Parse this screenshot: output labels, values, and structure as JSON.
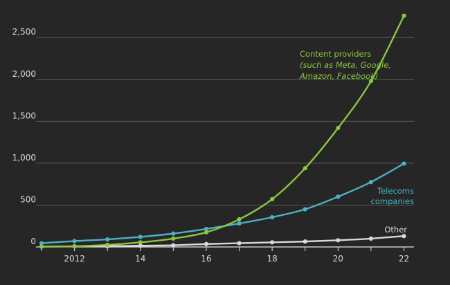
{
  "chart_data": {
    "type": "line",
    "title": "",
    "xlabel": "",
    "ylabel": "",
    "x": [
      2011,
      2012,
      2013,
      2014,
      2015,
      2016,
      2017,
      2018,
      2019,
      2020,
      2021,
      2022
    ],
    "x_tick_values": [
      2012,
      2014,
      2016,
      2018,
      2020,
      2022
    ],
    "x_tick_labels": [
      "2012",
      "14",
      "16",
      "18",
      "20",
      "22"
    ],
    "xlim": [
      2011,
      2022.2
    ],
    "y_ticks": [
      0,
      500,
      1000,
      1500,
      2000,
      2500
    ],
    "y_tick_labels": [
      "0",
      "500",
      "1,000",
      "1,500",
      "2,000",
      "2,500"
    ],
    "ylim": [
      0,
      2700
    ],
    "grid": "horizontal",
    "series": [
      {
        "key": "content",
        "label_lines": [
          "Content providers",
          "(such as Meta, Google,",
          "Amazon, Facebook)"
        ],
        "color": "#8cc63f",
        "values": [
          3,
          8,
          25,
          55,
          100,
          175,
          330,
          570,
          940,
          1420,
          1980,
          2760
        ]
      },
      {
        "key": "telecoms",
        "label_lines": [
          "Telecoms",
          "companies"
        ],
        "color": "#4ab2c4",
        "values": [
          45,
          70,
          90,
          120,
          160,
          215,
          280,
          355,
          450,
          600,
          775,
          995
        ]
      },
      {
        "key": "other",
        "label_lines": [
          "Other"
        ],
        "color": "#d9d9d9",
        "values": [
          5,
          8,
          10,
          15,
          20,
          35,
          45,
          55,
          65,
          80,
          100,
          130
        ]
      }
    ],
    "colors": {
      "background": "#262626",
      "grid": "#5a5a5a",
      "axis": "#e6e6e6",
      "tick_text": "#d9d9d9"
    }
  }
}
